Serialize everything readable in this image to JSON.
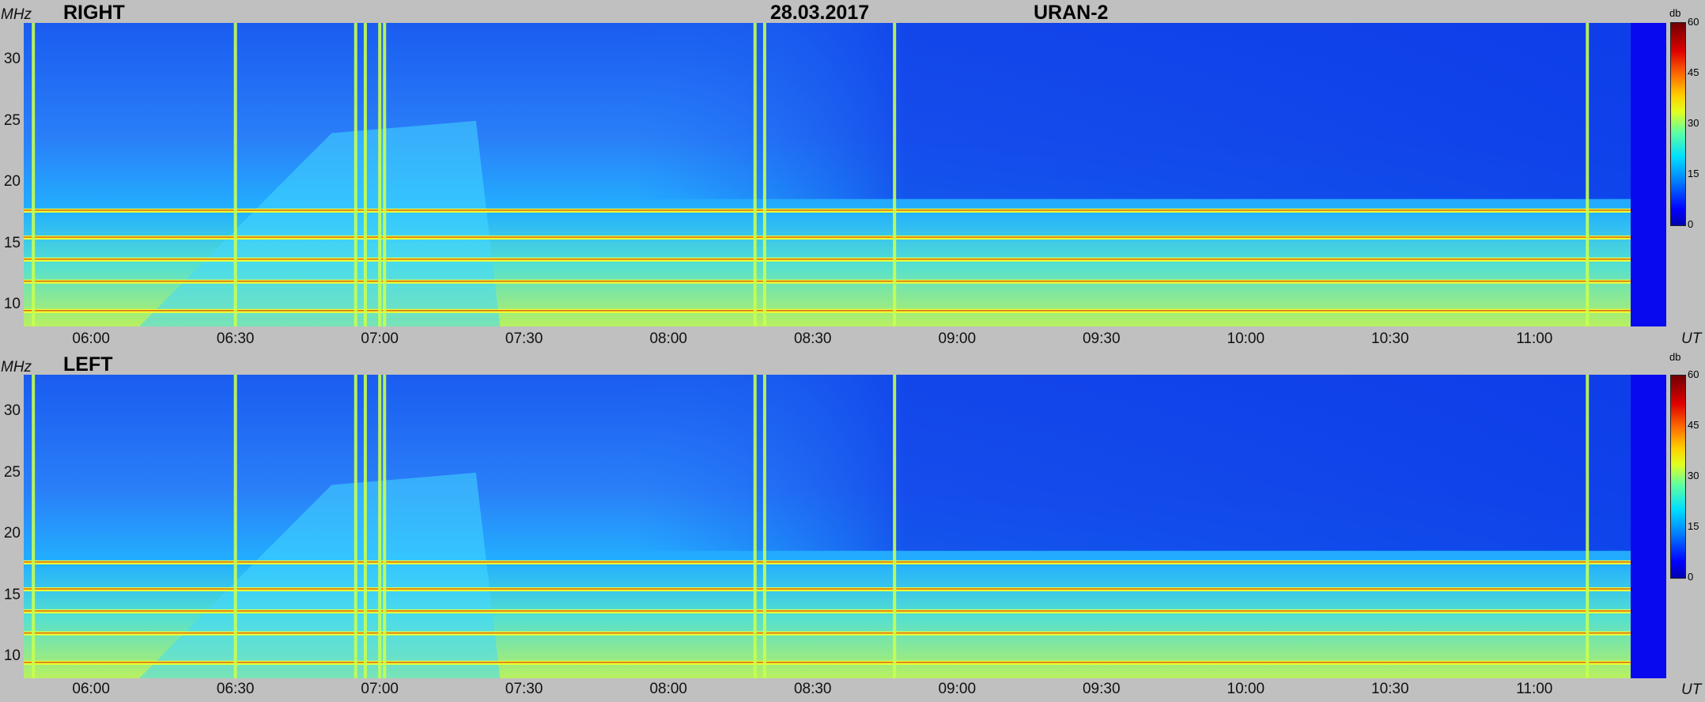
{
  "header": {
    "date": "28.03.2017",
    "instrument": "URAN-2"
  },
  "axis": {
    "y_unit": "MHz",
    "x_unit": "UT",
    "y_ticks": [
      "30",
      "25",
      "20",
      "15",
      "10"
    ],
    "x_ticks": [
      "06:00",
      "06:30",
      "07:00",
      "07:30",
      "08:00",
      "08:30",
      "09:00",
      "09:30",
      "10:00",
      "10:30",
      "11:00"
    ]
  },
  "colorbar": {
    "unit": "db",
    "ticks": [
      "60",
      "45",
      "30",
      "15",
      "0"
    ]
  },
  "chart_data": [
    {
      "type": "heatmap",
      "title": "RIGHT",
      "xlabel": "UT",
      "ylabel": "MHz",
      "xlim": [
        "05:46",
        "11:20"
      ],
      "ylim": [
        8.2,
        33
      ],
      "colorbar_range_db": [
        0,
        60
      ],
      "horizontal_interference_lines_mhz": [
        17.7,
        15.5,
        13.7,
        11.9,
        9.5
      ],
      "vertical_burst_times": [
        "05:48",
        "06:30",
        "06:55",
        "06:57",
        "07:00",
        "07:01",
        "08:18",
        "08:20",
        "08:47",
        "11:11"
      ]
    },
    {
      "type": "heatmap",
      "title": "LEFT",
      "xlabel": "UT",
      "ylabel": "MHz",
      "xlim": [
        "05:46",
        "11:20"
      ],
      "ylim": [
        8.2,
        33
      ],
      "colorbar_range_db": [
        0,
        60
      ],
      "horizontal_interference_lines_mhz": [
        17.7,
        15.5,
        13.7,
        11.9,
        9.5
      ],
      "vertical_burst_times": [
        "05:48",
        "06:30",
        "06:55",
        "06:57",
        "07:00",
        "07:01",
        "08:18",
        "08:20",
        "08:47",
        "11:11"
      ]
    }
  ]
}
